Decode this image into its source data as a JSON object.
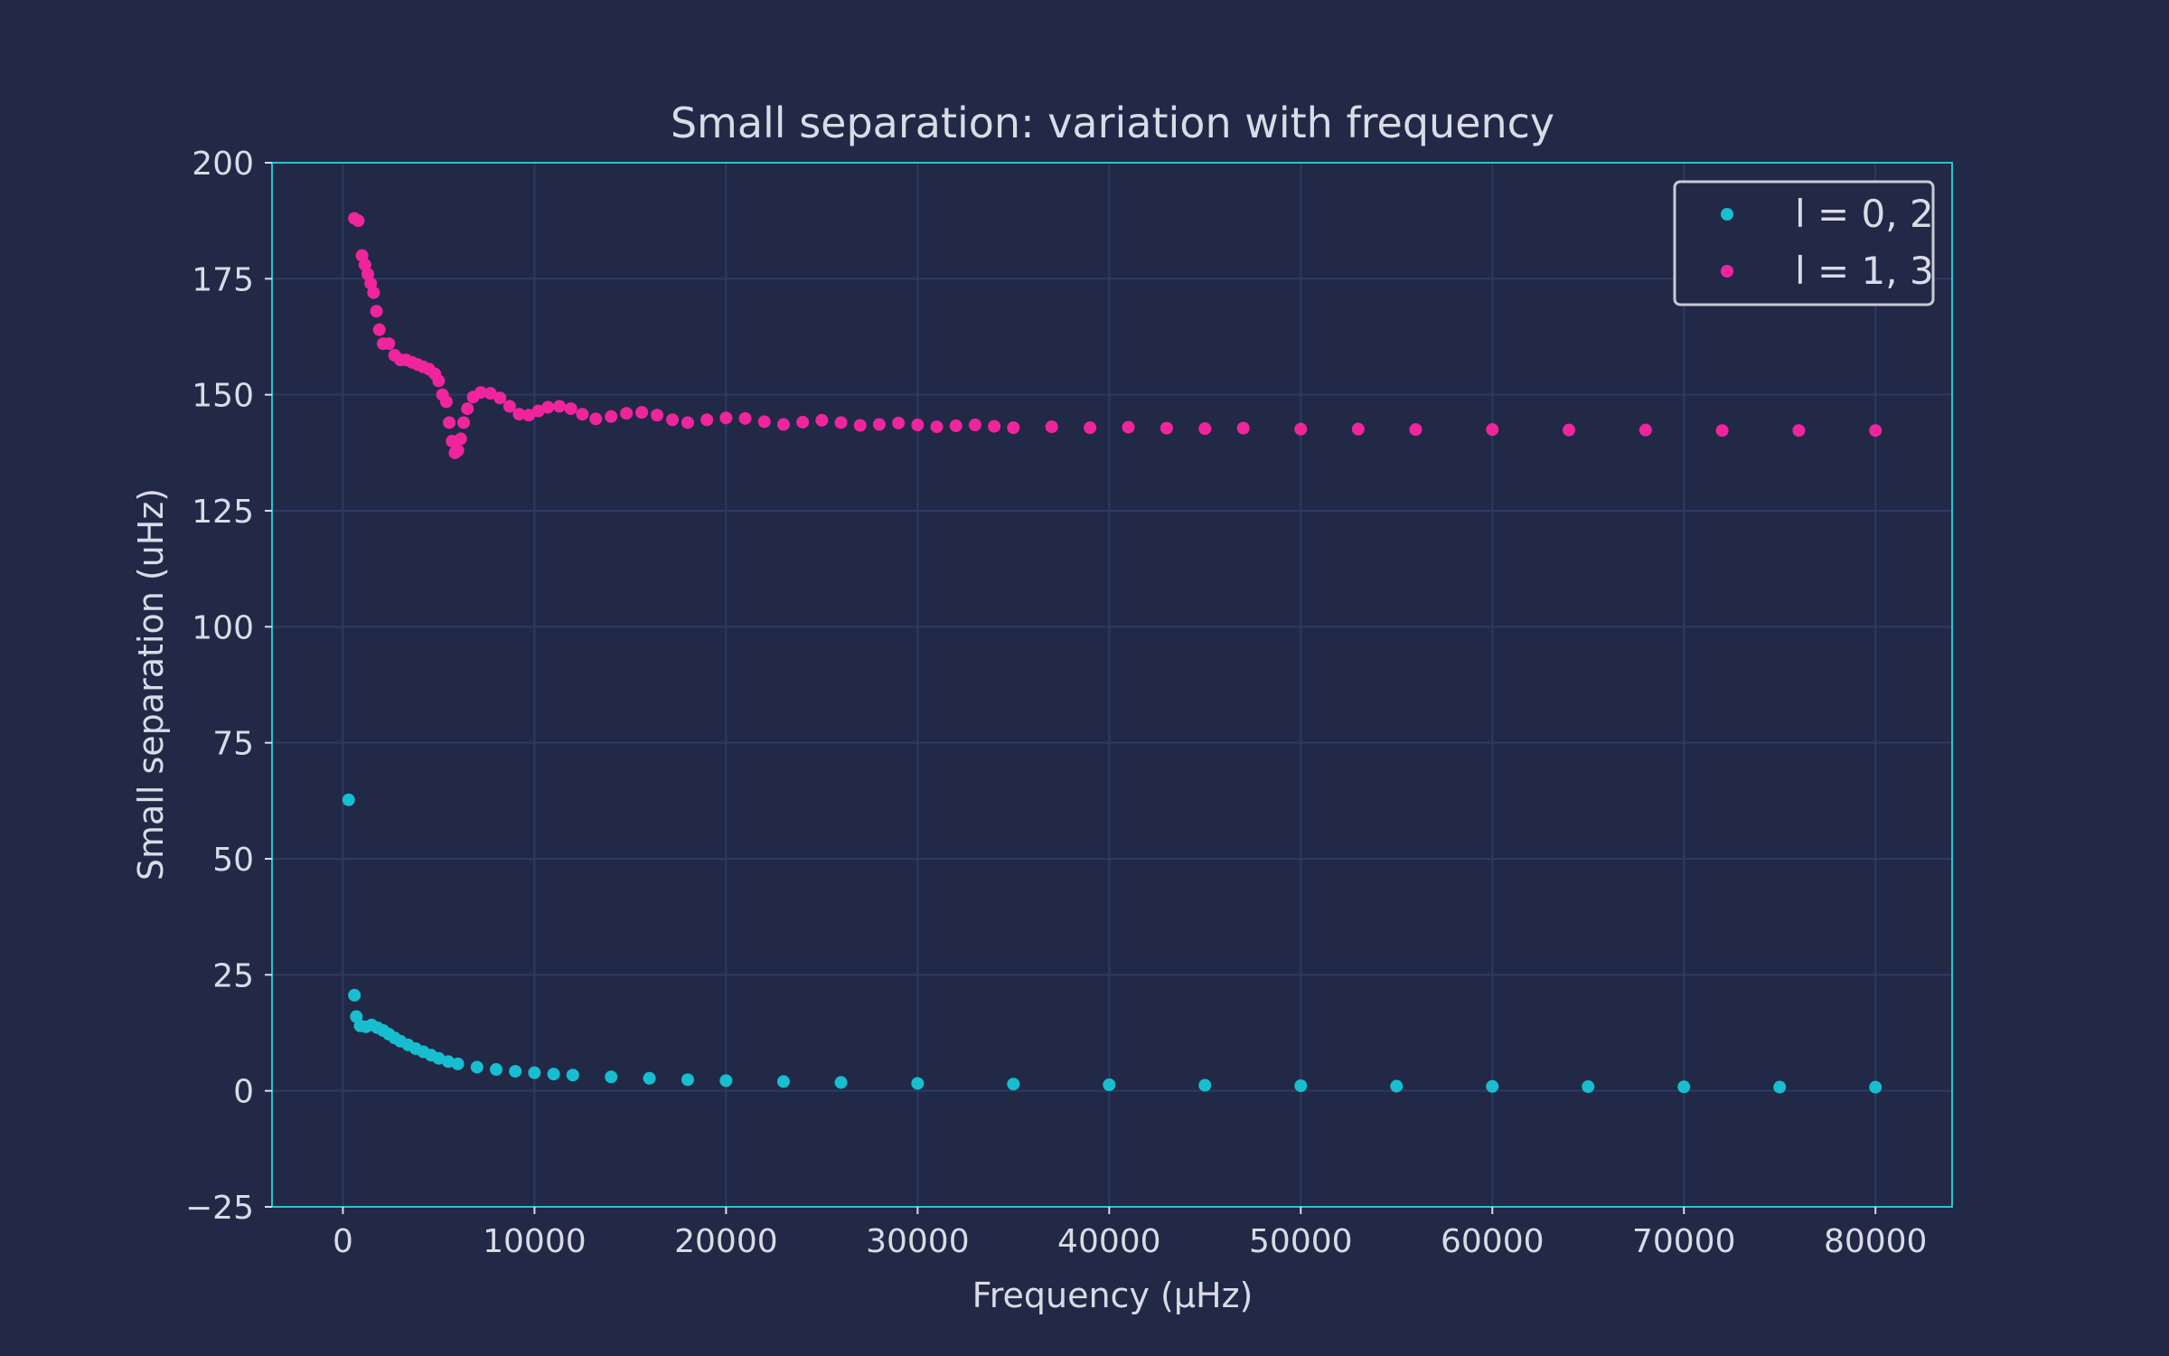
{
  "chart_data": {
    "type": "scatter",
    "title": "Small separation: variation with frequency",
    "xlabel": "Frequency (μHz)",
    "ylabel": "Small separation (uHz)",
    "xlim": [
      -3700,
      84000
    ],
    "ylim": [
      -25,
      200
    ],
    "xticks": [
      0,
      10000,
      20000,
      30000,
      40000,
      50000,
      60000,
      70000,
      80000
    ],
    "yticks": [
      -25,
      0,
      25,
      50,
      75,
      100,
      125,
      150,
      175,
      200
    ],
    "grid": true,
    "legend_position": "top-right",
    "colors": {
      "background": "#212946",
      "grid": "#2c3a63",
      "frame": "#2bc4c9",
      "text": "#d9dbe6"
    },
    "series": [
      {
        "name": "l = 0, 2",
        "label_display": "l = 0, 2",
        "color": "#17becf",
        "points": [
          [
            300,
            62.7
          ],
          [
            600,
            20.6
          ],
          [
            700,
            16.0
          ],
          [
            900,
            14.0
          ],
          [
            1200,
            13.8
          ],
          [
            1500,
            14.2
          ],
          [
            1800,
            13.6
          ],
          [
            2100,
            13.0
          ],
          [
            2400,
            12.2
          ],
          [
            2700,
            11.4
          ],
          [
            3000,
            10.7
          ],
          [
            3400,
            9.9
          ],
          [
            3800,
            9.1
          ],
          [
            4200,
            8.4
          ],
          [
            4600,
            7.7
          ],
          [
            5000,
            7.0
          ],
          [
            5500,
            6.3
          ],
          [
            6000,
            5.8
          ],
          [
            7000,
            5.1
          ],
          [
            8000,
            4.6
          ],
          [
            9000,
            4.2
          ],
          [
            10000,
            3.9
          ],
          [
            11000,
            3.6
          ],
          [
            12000,
            3.4
          ],
          [
            14000,
            3.0
          ],
          [
            16000,
            2.7
          ],
          [
            18000,
            2.4
          ],
          [
            20000,
            2.2
          ],
          [
            23000,
            2.0
          ],
          [
            26000,
            1.8
          ],
          [
            30000,
            1.6
          ],
          [
            35000,
            1.45
          ],
          [
            40000,
            1.3
          ],
          [
            45000,
            1.2
          ],
          [
            50000,
            1.1
          ],
          [
            55000,
            1.0
          ],
          [
            60000,
            0.95
          ],
          [
            65000,
            0.9
          ],
          [
            70000,
            0.85
          ],
          [
            75000,
            0.8
          ],
          [
            80000,
            0.78
          ]
        ]
      },
      {
        "name": "l = 1, 3",
        "label_display": "l = 1, 3",
        "color": "#f0259c",
        "points": [
          [
            600,
            188.0
          ],
          [
            800,
            187.5
          ],
          [
            1000,
            180.0
          ],
          [
            1150,
            178.0
          ],
          [
            1300,
            176.0
          ],
          [
            1450,
            174.0
          ],
          [
            1600,
            172.0
          ],
          [
            1750,
            168.0
          ],
          [
            1900,
            164.0
          ],
          [
            2100,
            161.0
          ],
          [
            2400,
            161.0
          ],
          [
            2700,
            158.5
          ],
          [
            3000,
            157.5
          ],
          [
            3300,
            157.5
          ],
          [
            3600,
            157.0
          ],
          [
            3900,
            156.5
          ],
          [
            4200,
            156.0
          ],
          [
            4500,
            155.5
          ],
          [
            4800,
            154.5
          ],
          [
            5000,
            153.0
          ],
          [
            5200,
            150.0
          ],
          [
            5400,
            148.5
          ],
          [
            5550,
            144.0
          ],
          [
            5700,
            140.0
          ],
          [
            5850,
            137.5
          ],
          [
            6000,
            138.0
          ],
          [
            6150,
            140.5
          ],
          [
            6300,
            144.0
          ],
          [
            6500,
            147.0
          ],
          [
            6800,
            149.5
          ],
          [
            7200,
            150.5
          ],
          [
            7700,
            150.3
          ],
          [
            8200,
            149.3
          ],
          [
            8700,
            147.5
          ],
          [
            9200,
            145.8
          ],
          [
            9700,
            145.6
          ],
          [
            10200,
            146.5
          ],
          [
            10700,
            147.3
          ],
          [
            11300,
            147.5
          ],
          [
            11900,
            147.0
          ],
          [
            12500,
            145.8
          ],
          [
            13200,
            144.8
          ],
          [
            14000,
            145.3
          ],
          [
            14800,
            146.0
          ],
          [
            15600,
            146.2
          ],
          [
            16400,
            145.6
          ],
          [
            17200,
            144.6
          ],
          [
            18000,
            144.0
          ],
          [
            19000,
            144.6
          ],
          [
            20000,
            145.0
          ],
          [
            21000,
            144.9
          ],
          [
            22000,
            144.2
          ],
          [
            23000,
            143.6
          ],
          [
            24000,
            144.1
          ],
          [
            25000,
            144.5
          ],
          [
            26000,
            144.0
          ],
          [
            27000,
            143.4
          ],
          [
            28000,
            143.6
          ],
          [
            29000,
            143.9
          ],
          [
            30000,
            143.5
          ],
          [
            31000,
            143.1
          ],
          [
            32000,
            143.3
          ],
          [
            33000,
            143.5
          ],
          [
            34000,
            143.2
          ],
          [
            35000,
            142.9
          ],
          [
            37000,
            143.1
          ],
          [
            39000,
            142.9
          ],
          [
            41000,
            143.0
          ],
          [
            43000,
            142.8
          ],
          [
            45000,
            142.7
          ],
          [
            47000,
            142.8
          ],
          [
            50000,
            142.6
          ],
          [
            53000,
            142.6
          ],
          [
            56000,
            142.5
          ],
          [
            60000,
            142.5
          ],
          [
            64000,
            142.4
          ],
          [
            68000,
            142.4
          ],
          [
            72000,
            142.3
          ],
          [
            76000,
            142.3
          ],
          [
            80000,
            142.3
          ]
        ]
      }
    ]
  }
}
